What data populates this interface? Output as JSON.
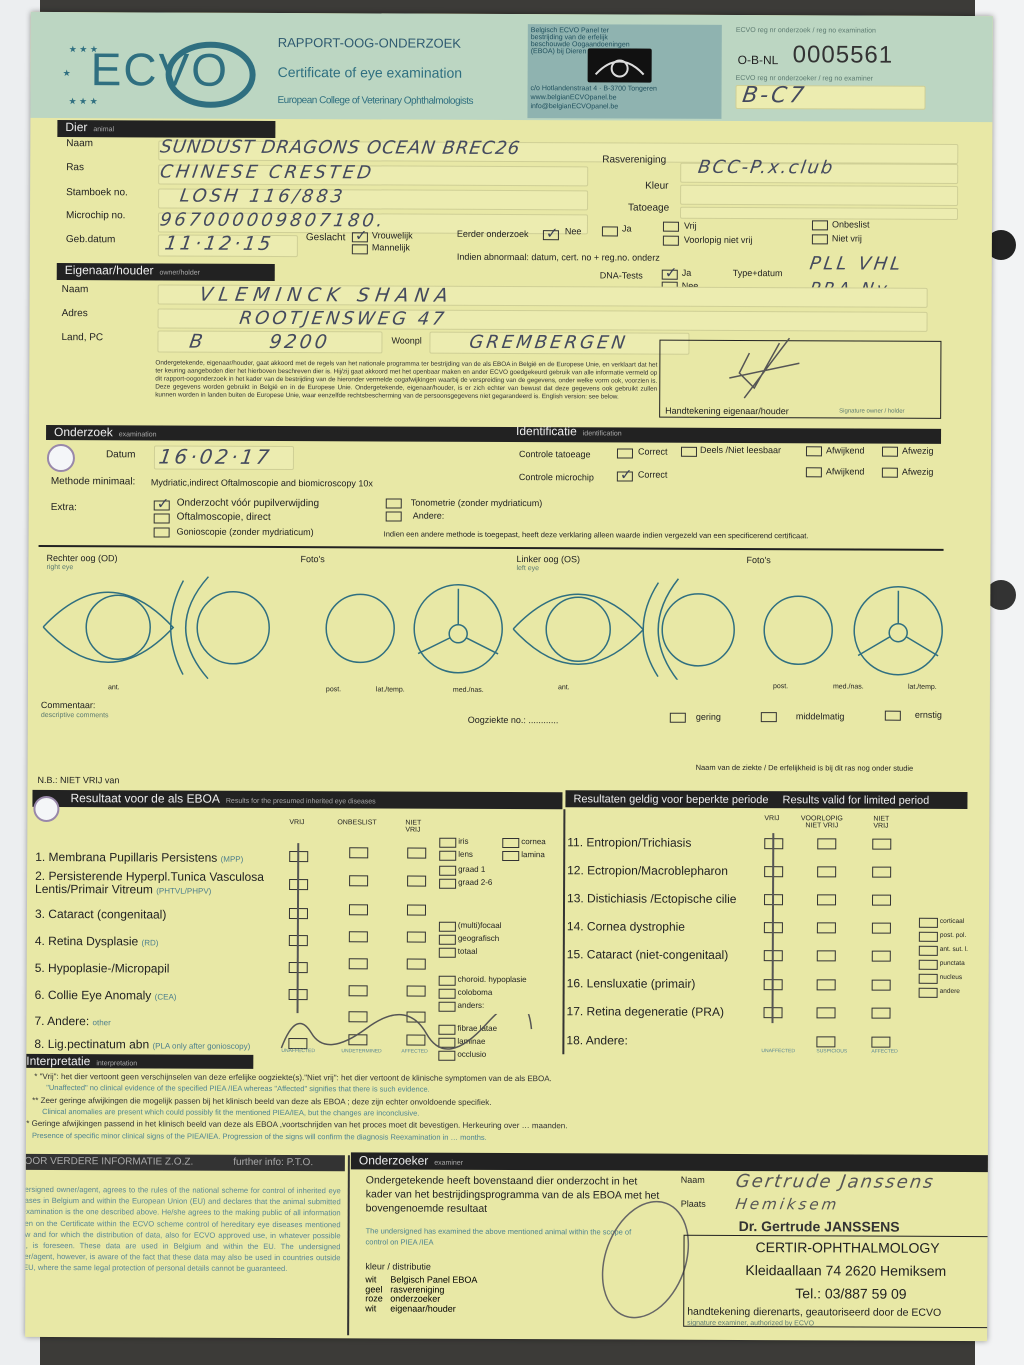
{
  "header": {
    "logo": "ECVO",
    "title_nl": "RAPPORT-OOG-ONDERZOEK",
    "title_en": "Certificate of eye examination",
    "college": "European College of Veterinary Ophthalmologists",
    "panel_text": "Belgisch ECVO Panel ter bestrijding van de erfelijk beschouwde Oogaandoeningen (EBOA) bij Dieren",
    "panel_address": "c/o Hotlandenstraat 4 · B-3700 Tongeren",
    "panel_web": "www.belgianECVOpanel.be",
    "panel_email": "info@belgianECVOpanel.be",
    "reg_label": "ECVO reg nr onderzoek / reg no examination",
    "cert_prefix": "O-B-NL",
    "cert_number": "0005561",
    "reg_label2": "ECVO reg nr onderzoeker / reg no examiner",
    "reg_value": "B-C7"
  },
  "animal": {
    "section": "Dier",
    "section_en": "animal",
    "name_label": "Naam",
    "name_value": "SUNDUST DRAGONS OCEAN BREC26",
    "breed_label": "Ras",
    "breed_value": "CHINESE CRESTED",
    "studbook_label": "Stamboek no.",
    "studbook_value": "LOSH 116/883",
    "chip_label": "Microchip no.",
    "chip_value": "967000009807180.",
    "dob_label": "Geb.datum",
    "dob_value": "11·12·15",
    "club_label": "Rasvereniging",
    "club_value": "BCC-P.x.club",
    "color_label": "Kleur",
    "tattoo_label": "Tatoeage",
    "sex_label": "Geslacht",
    "female": "Vrouwelijk",
    "male": "Mannelijk",
    "prev_label": "Eerder onderzoek",
    "no": "Nee",
    "yes": "Ja",
    "free": "Vrij",
    "prov_not_free": "Voorlopig niet vrij",
    "undecided": "Onbeslist",
    "not_free": "Niet vrij",
    "abnormal_label": "Indien abnormaal: datum, cert. no + reg.no. onderz",
    "dna_label": "DNA-Tests",
    "dna_yes": "Ja",
    "dna_no": "Nee",
    "dna_type_label": "Type+datum",
    "dna_value_1": "PLL VHL",
    "dna_value_2": "PRA Ny"
  },
  "owner": {
    "section": "Eigenaar/houder",
    "section_en": "owner/holder",
    "name_label": "Naam",
    "name_value": "VLEMINCK SHANA",
    "address_label": "Adres",
    "address_value": "ROOTJENSWEG 47",
    "country_label": "Land, PC",
    "country_value": "B",
    "zip_value": "9200",
    "city_label": "Woonpl",
    "city_value": "GREMBERGEN",
    "consent": "Ondergetekende, eigenaar/houder, gaat akkoord met de regels van het nationale programma ter bestrijding van de als EBOA in België en de Europese Unie, en verklaart dat het ter keuring aangeboden dier het hierboven beschreven dier is. Hij/zij gaat akkoord met het openbaar maken en ander ECVO goedgekeurd gebruik van alle informatie vermeld op dit rapport-oogonderzoek in het kader van de bestrijding van de hieronder vermelde oogafwijkingen waarbij de verspreiding van de gegevens, onder welke vorm ook, voorzien is. Deze gegevens worden gebruikt in België en in de Europese Unie. Ondergetekende, eigenaar/houder, is er zich echter van bewust dat deze gegevens ook gebruikt zullen kunnen worden in landen buiten de Europese Unie, waar eenzelfde rechtsbescherming van de persoonsgegevens niet gegarandeerd is. English version: see below.",
    "signature_label": "Handtekening eigenaar/houder",
    "signature_en": "Signature owner / holder"
  },
  "exam": {
    "section": "Onderzoek",
    "section_en": "examination",
    "date_label": "Datum",
    "date_value": "16·02·17",
    "method_label": "Methode minimaal:",
    "method_value": "Mydriatic,indirect Oftalmoscopie and biomicroscopy 10x",
    "extra_label": "Extra:",
    "extra_1": "Onderzocht vóór pupilverwijding",
    "extra_2": "Oftalmoscopie, direct",
    "extra_3": "Gonioscopie (zonder mydriaticum)",
    "extra_4": "Tonometrie (zonder mydriaticum)",
    "extra_5": "Andere:",
    "other_method_note": "Indien een andere methode is toegepast, heeft deze verklaring alleen waarde indien vergezeld van een specificerend certificaat."
  },
  "identification": {
    "section": "Identificatie",
    "section_en": "identification",
    "tattoo_check": "Controle tatoeage",
    "chip_check": "Controle microchip",
    "correct": "Correct",
    "partly": "Deels /Niet leesbaar",
    "deviating": "Afwijkend",
    "absent": "Afwezig"
  },
  "eyes": {
    "right": "Rechter oog (OD)",
    "right_en": "right eye",
    "left": "Linker oog (OS)",
    "left_en": "left eye",
    "photos": "Foto's",
    "ant": "ant.",
    "post": "post.",
    "lat": "lat./temp.",
    "med": "med./nas."
  },
  "comments": {
    "label": "Commentaar:",
    "label_en": "descriptive comments",
    "disease_no": "Oogziekte no.: ............",
    "mild": "gering",
    "moderate": "middelmatig",
    "severe": "ernstig",
    "disease_name": "Naam van de ziekte / De erfelijkheid is bij dit ras nog onder studie",
    "nb": "N.B.: NIET VRIJ van"
  },
  "results_left": {
    "title": "Resultaat voor de als  EBOA",
    "title_en": "Results for the presumed inherited eye diseases",
    "col_free": "VRIJ",
    "col_undecided": "ONBESLIST",
    "col_not_free": "NIET VRIJ",
    "rows": [
      {
        "label": "1. Membrana Pupillaris Persistens",
        "abbr": "(MPP)",
        "subs": [
          "iris",
          "lens",
          "cornea",
          "lamina"
        ]
      },
      {
        "label": "2. Persisterende Hyperpl.Tunica Vasculosa Lentis/Primair Vitreum",
        "abbr": "(PHTVL/PHPV)",
        "subs": [
          "graad 1",
          "graad 2-6"
        ]
      },
      {
        "label": "3. Cataract (congenitaal)",
        "abbr": "",
        "subs": []
      },
      {
        "label": "4. Retina Dysplasie",
        "abbr": "(RD)",
        "subs": [
          "(multi)focaal",
          "geografisch",
          "totaal"
        ]
      },
      {
        "label": "5. Hypoplasie-/Micropapil",
        "abbr": "",
        "subs": []
      },
      {
        "label": "6. Collie Eye Anomaly",
        "abbr": "(CEA)",
        "subs": [
          "choroid. hypoplasie",
          "coloboma",
          "anders:"
        ]
      },
      {
        "label": "7. Andere:",
        "abbr": "other",
        "subs": []
      },
      {
        "label": "8. Lig.pectinatum abn",
        "abbr": "(PLA only after gonioscopy)",
        "subs": [
          "fibrae latae",
          "laminae",
          "occlusio"
        ]
      }
    ],
    "foot": [
      "UNAFFECTED",
      "UNDETERMINED",
      "AFFECTED"
    ]
  },
  "results_right": {
    "title": "Resultaten geldig voor beperkte periode",
    "title_en": "Results valid for limited period",
    "col_free": "VRIJ",
    "col_prov": "VOORLOPIG NIET VRIJ",
    "col_not_free": "NIET VRIJ",
    "rows": [
      "11. Entropion/Trichiasis",
      "12. Ectropion/Macroblepharon",
      "13. Distichiasis /Ectopische cilie",
      "14. Cornea dystrophie",
      "15. Cataract (niet-congenitaal)",
      "16. Lensluxatie (primair)",
      "17. Retina degeneratie (PRA)",
      "18. Andere:"
    ],
    "cataract_subs": [
      "corticaal",
      "post. pol.",
      "ant. sut. l.",
      "punctata",
      "nucleus",
      "andere"
    ],
    "foot": [
      "UNAFFECTED",
      "SUSPICIOUS",
      "AFFECTED"
    ]
  },
  "interpretation": {
    "title": "Interpretatie",
    "title_en": "interpretation",
    "n1": "* \"Vrij\": het dier vertoont geen verschijnselen van deze erfelijke oogziekte(s).\"Niet vrij\": het dier vertoont de klinische symptomen van de als EBOA.",
    "n1_en": "\"Unaffected\" no clinical evidence of the specified PIEA /IEA whereas \"Affected\" signifies that there is such evidence.",
    "n2": "** Zeer geringe afwijkingen die mogelijk passen bij het klinisch beeld van deze als EBOA ; deze zijn echter onvoldoende specifiek.",
    "n2_en": "Clinical anomalies are present which could possibly fit the mentioned PIEA/IEA, but the changes are inconclusive.",
    "n3": "*** Geringe afwijkingen passend in het klinisch beeld van deze als EBOA ,voortschrijden van het proces moet dit bevestigen. Herkeuring over … maanden.",
    "n3_en": "Presence of specific minor clinical signs of the PIEA/IEA. Progression of the signs will confirm the diagnosis Reexamination in … months."
  },
  "further_info": {
    "title": "VOOR VERDERE INFORMATIE Z.O.Z.",
    "title_en": "further info: P.T.O.",
    "text": "Undersigned owner/agent, agrees to the rules of the national scheme for control of inherited eye diseases in Belgium and within the European Union (EU) and declares that the animal submitted for examination is the one described above. He/she agrees to the making public of all information written on the Certificate within the ECVO scheme control of hereditary eye diseases mentioned below and for which the distribution of data, also for ECVO approved use, in whatever possible form, is foreseen. These data are used in Belgium and within the EU. The undersigned owner/agent, however, is aware of the fact that these data may also be used in countries outside the EU, where the same legal protection of personal details cannot be guaranteed."
  },
  "examiner": {
    "title": "Onderzoeker",
    "title_en": "examiner",
    "statement": "Ondergetekende heeft bovenstaand dier onderzocht in het kader van het bestrijdingsprogramma van de als EBOA met het bovengenoemde resultaat",
    "statement_en": "The undersigned has examined the above mentioned animal within the scope of control on PIEA /IEA",
    "name_label": "Naam",
    "name_value": "Gertrude Janssens",
    "place_label": "Plaats",
    "place_value": "Hemiksem",
    "distribution_label": "kleur / distributie",
    "distribution": [
      [
        "wit",
        "Belgisch Panel EBOA"
      ],
      [
        "geel",
        "rasvereniging"
      ],
      [
        "roze",
        "onderzoeker"
      ],
      [
        "wit",
        "eigenaar/houder"
      ]
    ],
    "stamp_name": "Dr. Gertrude JANSSENS",
    "stamp_org": "CERTIR-OPHTHALMOLOGY",
    "stamp_address": "Kleidaallaan 74  2620 Hemiksem",
    "stamp_tel": "Tel.: 03/887 59 09",
    "signature_label": "handtekening dierenarts, geautoriseerd door de ECVO",
    "signature_en": "signature examiner, authorized by ECVO"
  },
  "colors": {
    "paper": "#e8e8a6",
    "header": "#bcd6c2",
    "ink": "#444a5e",
    "accent": "#2f6f80"
  }
}
